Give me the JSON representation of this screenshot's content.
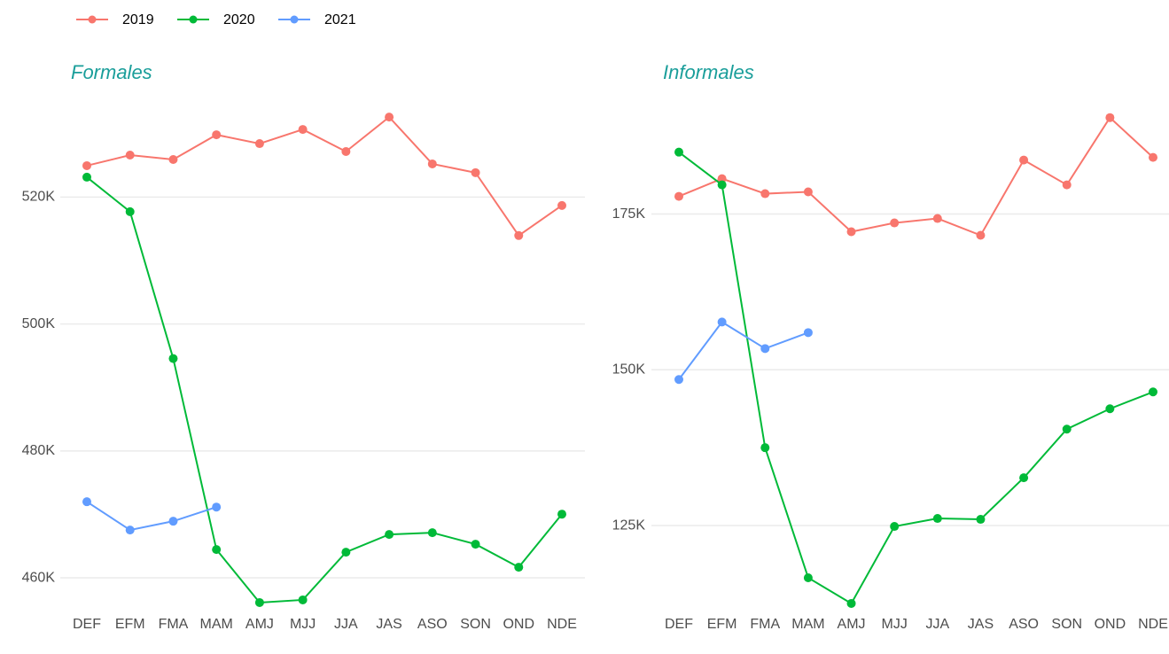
{
  "chart_data": [
    {
      "type": "line",
      "title": "Formales",
      "categories": [
        "DEF",
        "EFM",
        "FMA",
        "MAM",
        "AMJ",
        "MJJ",
        "JJA",
        "JAS",
        "ASO",
        "SON",
        "OND",
        "NDE"
      ],
      "ylim": [
        454000,
        535000
      ],
      "yticks": [
        {
          "value": 460000,
          "label": "460K"
        },
        {
          "value": 480000,
          "label": "480K"
        },
        {
          "value": 500000,
          "label": "500K"
        },
        {
          "value": 520000,
          "label": "520K"
        }
      ],
      "grid": true,
      "series": [
        {
          "name": "2019",
          "color": "#f8766d",
          "values": [
            524950,
            526620,
            525920,
            529820,
            528430,
            530660,
            527180,
            532610,
            525230,
            523850,
            513940,
            518680
          ]
        },
        {
          "name": "2020",
          "color": "#00ba38",
          "values": [
            523140,
            517700,
            494560,
            464460,
            456100,
            456520,
            464040,
            466830,
            467110,
            465300,
            461670,
            470030
          ]
        },
        {
          "name": "2021",
          "color": "#619cff",
          "values": [
            471990,
            467530,
            468920,
            471150,
            null,
            null,
            null,
            null,
            null,
            null,
            null,
            null
          ]
        }
      ]
    },
    {
      "type": "line",
      "title": "Informales",
      "categories": [
        "DEF",
        "EFM",
        "FMA",
        "MAM",
        "AMJ",
        "MJJ",
        "JJA",
        "JAS",
        "ASO",
        "SON",
        "OND",
        "NDE"
      ],
      "ylim": [
        110500,
        193000
      ],
      "yticks": [
        {
          "value": 125000,
          "label": "125K"
        },
        {
          "value": 150000,
          "label": "150K"
        },
        {
          "value": 175000,
          "label": "175K"
        }
      ],
      "grid": true,
      "series": [
        {
          "color": "#f8766d",
          "values": [
            177840,
            180680,
            178270,
            178560,
            172160,
            173580,
            174290,
            171590,
            183670,
            179690,
            190480,
            184090
          ]
        },
        {
          "color": "#00ba38",
          "values": [
            184940,
            179690,
            137500,
            116620,
            112500,
            124860,
            126140,
            126000,
            132670,
            140480,
            143750,
            146450
          ]
        },
        {
          "color": "#619cff",
          "values": [
            148440,
            157670,
            153410,
            155970,
            null,
            null,
            null,
            null,
            null,
            null,
            null,
            null
          ]
        }
      ]
    }
  ]
}
